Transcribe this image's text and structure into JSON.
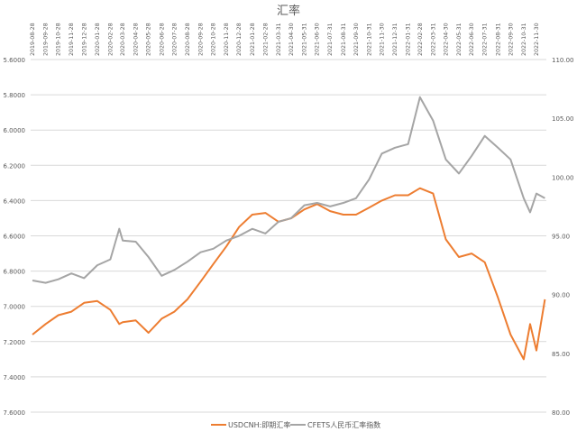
{
  "chart_data": {
    "type": "line",
    "title": "汇率",
    "x_tick_labels": [
      "2019-08-28",
      "2019-09-28",
      "2019-10-28",
      "2019-11-28",
      "2019-12-28",
      "2020-01-28",
      "2020-02-28",
      "2020-03-28",
      "2020-04-28",
      "2020-05-28",
      "2020-06-28",
      "2020-07-28",
      "2020-08-28",
      "2020-09-28",
      "2020-10-28",
      "2020-11-28",
      "2020-12-28",
      "2021-01-28",
      "2021-02-28",
      "2021-03-31",
      "2021-04-30",
      "2021-05-31",
      "2021-06-30",
      "2021-07-31",
      "2021-08-31",
      "2021-09-30",
      "2021-10-31",
      "2021-11-30",
      "2021-12-31",
      "2022-01-31",
      "2022-02-28",
      "2022-03-31",
      "2022-04-30",
      "2022-05-31",
      "2022-06-30",
      "2022-07-31",
      "2022-08-31",
      "2022-09-30",
      "2022-10-31",
      "2022-11-30"
    ],
    "x": [
      "2019-08-28",
      "2019-09-28",
      "2019-10-28",
      "2019-11-28",
      "2019-12-28",
      "2020-01-28",
      "2020-02-28",
      "2020-03-20",
      "2020-03-28",
      "2020-04-28",
      "2020-05-28",
      "2020-06-28",
      "2020-07-28",
      "2020-08-28",
      "2020-09-28",
      "2020-10-28",
      "2020-11-28",
      "2020-12-28",
      "2021-01-28",
      "2021-02-28",
      "2021-03-31",
      "2021-04-30",
      "2021-05-31",
      "2021-06-30",
      "2021-07-31",
      "2021-08-31",
      "2021-09-30",
      "2021-10-31",
      "2021-11-30",
      "2021-12-31",
      "2022-01-31",
      "2022-02-28",
      "2022-03-31",
      "2022-04-30",
      "2022-05-31",
      "2022-06-30",
      "2022-07-31",
      "2022-08-31",
      "2022-09-30",
      "2022-10-31",
      "2022-11-15",
      "2022-11-30",
      "2022-12-20"
    ],
    "y_left": {
      "min": 5.6,
      "max": 7.6,
      "step": 0.2,
      "reversed": true,
      "format": "0.0000"
    },
    "y_right": {
      "min": 80,
      "max": 110,
      "step": 5,
      "format": "0.00"
    },
    "grid": true,
    "legend_position": "bottom",
    "series": [
      {
        "name": "USDCNH:即期汇率",
        "axis": "left",
        "color": "#ed7d31",
        "values": [
          7.16,
          7.1,
          7.05,
          7.03,
          6.98,
          6.97,
          7.02,
          7.1,
          7.09,
          7.08,
          7.15,
          7.07,
          7.03,
          6.96,
          6.86,
          6.76,
          6.66,
          6.55,
          6.48,
          6.47,
          6.52,
          6.5,
          6.45,
          6.42,
          6.46,
          6.48,
          6.48,
          6.44,
          6.4,
          6.37,
          6.37,
          6.33,
          6.36,
          6.62,
          6.72,
          6.7,
          6.75,
          6.95,
          7.16,
          7.3,
          7.1,
          7.25,
          6.96
        ]
      },
      {
        "name": "CFETS人民币汇率指数",
        "axis": "right",
        "color": "#a5a5a5",
        "values": [
          91.2,
          91.0,
          91.3,
          91.8,
          91.4,
          92.5,
          93.0,
          95.6,
          94.6,
          94.5,
          93.2,
          91.6,
          92.1,
          92.8,
          93.6,
          93.9,
          94.6,
          95.0,
          95.6,
          95.2,
          96.2,
          96.5,
          97.6,
          97.8,
          97.5,
          97.8,
          98.2,
          99.8,
          102.0,
          102.5,
          102.8,
          106.8,
          104.8,
          101.5,
          100.3,
          101.8,
          103.5,
          102.5,
          101.5,
          98.2,
          97.0,
          98.6,
          98.2
        ]
      }
    ]
  }
}
